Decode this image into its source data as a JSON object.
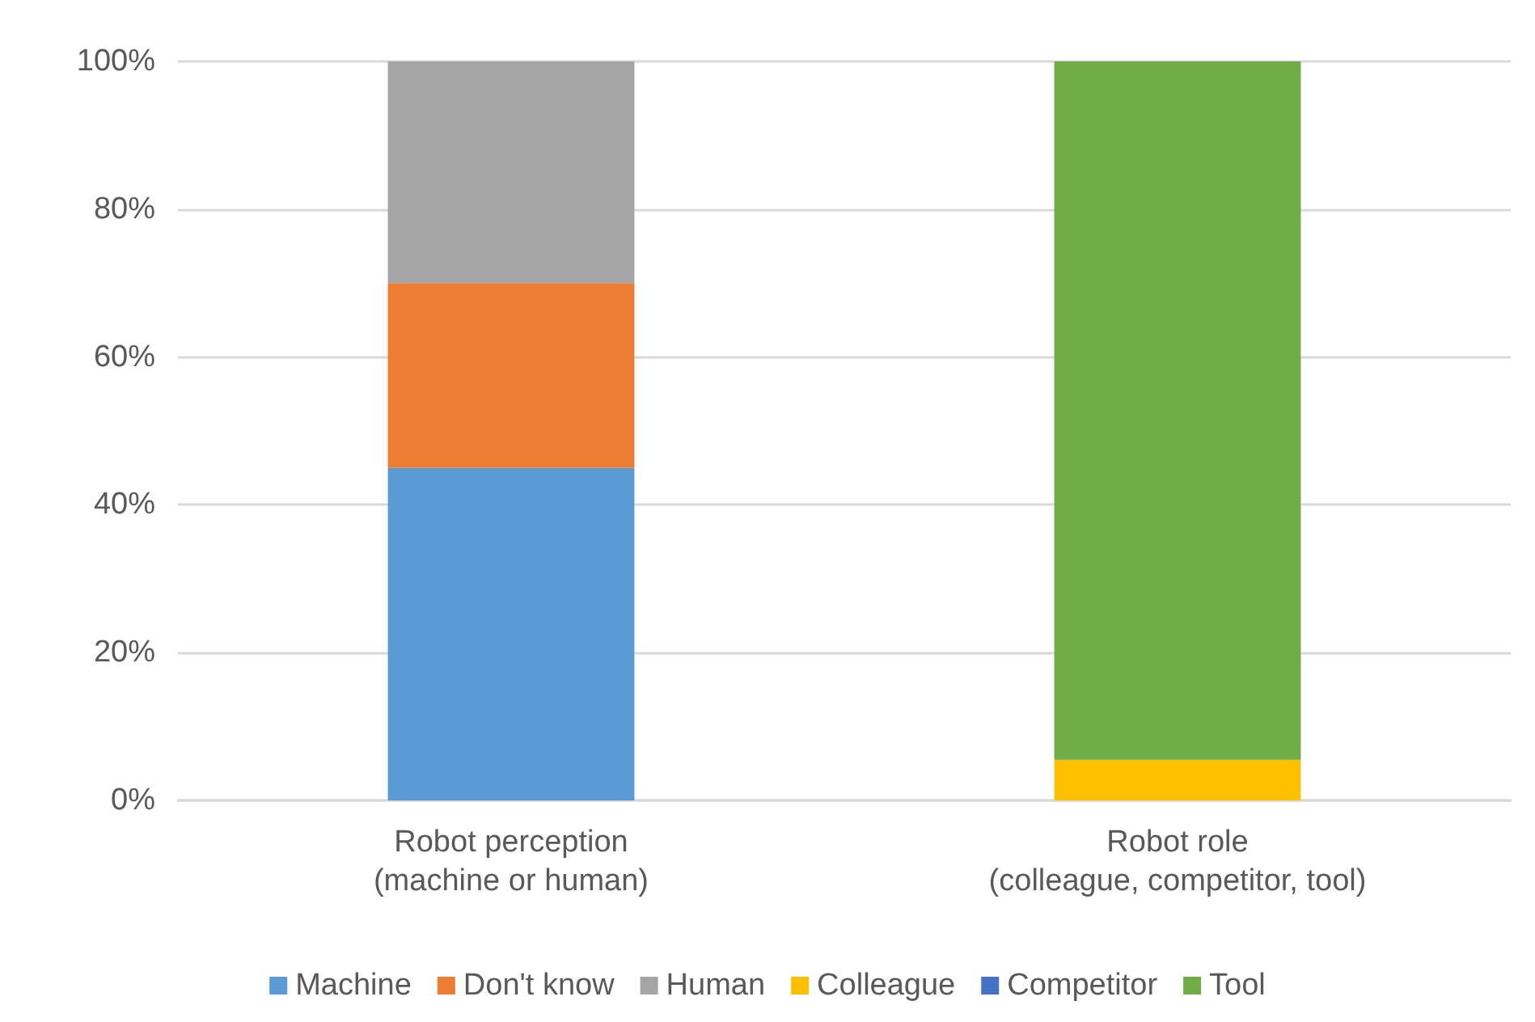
{
  "chart_data": {
    "type": "bar",
    "stacked": true,
    "categories": [
      "Robot perception\n(machine or human)",
      "Robot role\n(colleague, competitor, tool)"
    ],
    "series": [
      {
        "name": "Machine",
        "color": "#5b9bd5",
        "values": [
          45,
          null
        ]
      },
      {
        "name": "Don't know",
        "color": "#ed7d31",
        "values": [
          25,
          null
        ]
      },
      {
        "name": "Human",
        "color": "#a5a5a5",
        "values": [
          30,
          null
        ]
      },
      {
        "name": "Colleague",
        "color": "#ffc000",
        "values": [
          null,
          5.5
        ]
      },
      {
        "name": "Competitor",
        "color": "#4472c4",
        "values": [
          null,
          0
        ]
      },
      {
        "name": "Tool",
        "color": "#70ad47",
        "values": [
          null,
          94.5
        ]
      }
    ],
    "ylim": [
      0,
      100
    ],
    "yticks": [
      {
        "value": 0,
        "label": "0%"
      },
      {
        "value": 20,
        "label": "20%"
      },
      {
        "value": 40,
        "label": "40%"
      },
      {
        "value": 60,
        "label": "60%"
      },
      {
        "value": 80,
        "label": "80%"
      },
      {
        "value": 100,
        "label": "100%"
      }
    ],
    "grid": "y",
    "legend": "bottom"
  }
}
